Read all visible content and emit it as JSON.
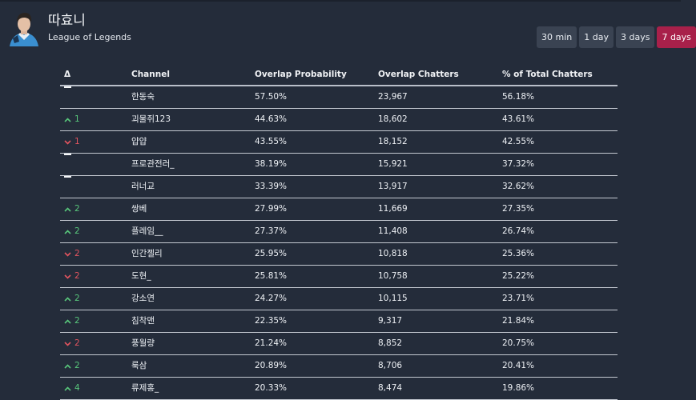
{
  "header": {
    "title": "따효니",
    "subtitle": "League of Legends"
  },
  "ranges": [
    {
      "label": "30 min",
      "active": false
    },
    {
      "label": "1 day",
      "active": false
    },
    {
      "label": "3 days",
      "active": false
    },
    {
      "label": "7 days",
      "active": true
    }
  ],
  "table": {
    "columns": {
      "delta": "Δ",
      "channel": "Channel",
      "probability": "Overlap Probability",
      "chatters": "Overlap Chatters",
      "percent": "% of Total Chatters"
    },
    "rows": [
      {
        "trend": "same",
        "change": "",
        "channel": "한동숙",
        "probability": "57.50%",
        "chatters": "23,967",
        "percent": "56.18%"
      },
      {
        "trend": "up",
        "change": "1",
        "channel": "괴물쥐123",
        "probability": "44.63%",
        "chatters": "18,602",
        "percent": "43.61%"
      },
      {
        "trend": "down",
        "change": "1",
        "channel": "얍얍",
        "probability": "43.55%",
        "chatters": "18,152",
        "percent": "42.55%"
      },
      {
        "trend": "same",
        "change": "",
        "channel": "프로관전러_",
        "probability": "38.19%",
        "chatters": "15,921",
        "percent": "37.32%"
      },
      {
        "trend": "same",
        "change": "",
        "channel": "러너교",
        "probability": "33.39%",
        "chatters": "13,917",
        "percent": "32.62%"
      },
      {
        "trend": "up",
        "change": "2",
        "channel": "쌍베",
        "probability": "27.99%",
        "chatters": "11,669",
        "percent": "27.35%"
      },
      {
        "trend": "up",
        "change": "2",
        "channel": "플레임__",
        "probability": "27.37%",
        "chatters": "11,408",
        "percent": "26.74%"
      },
      {
        "trend": "down",
        "change": "2",
        "channel": "인간젤리",
        "probability": "25.95%",
        "chatters": "10,818",
        "percent": "25.36%"
      },
      {
        "trend": "down",
        "change": "2",
        "channel": "도현_",
        "probability": "25.81%",
        "chatters": "10,758",
        "percent": "25.22%"
      },
      {
        "trend": "up",
        "change": "2",
        "channel": "강소연",
        "probability": "24.27%",
        "chatters": "10,115",
        "percent": "23.71%"
      },
      {
        "trend": "up",
        "change": "2",
        "channel": "침착맨",
        "probability": "22.35%",
        "chatters": "9,317",
        "percent": "21.84%"
      },
      {
        "trend": "down",
        "change": "2",
        "channel": "풍월량",
        "probability": "21.24%",
        "chatters": "8,852",
        "percent": "20.75%"
      },
      {
        "trend": "up",
        "change": "2",
        "channel": "룩삼",
        "probability": "20.89%",
        "chatters": "8,706",
        "percent": "20.41%"
      },
      {
        "trend": "up",
        "change": "4",
        "channel": "류제홍_",
        "probability": "20.33%",
        "chatters": "8,474",
        "percent": "19.86%"
      }
    ]
  },
  "colors": {
    "background": "#242c3a",
    "active_range": "#a8204a",
    "up": "#58c77b",
    "down": "#e0545e"
  }
}
